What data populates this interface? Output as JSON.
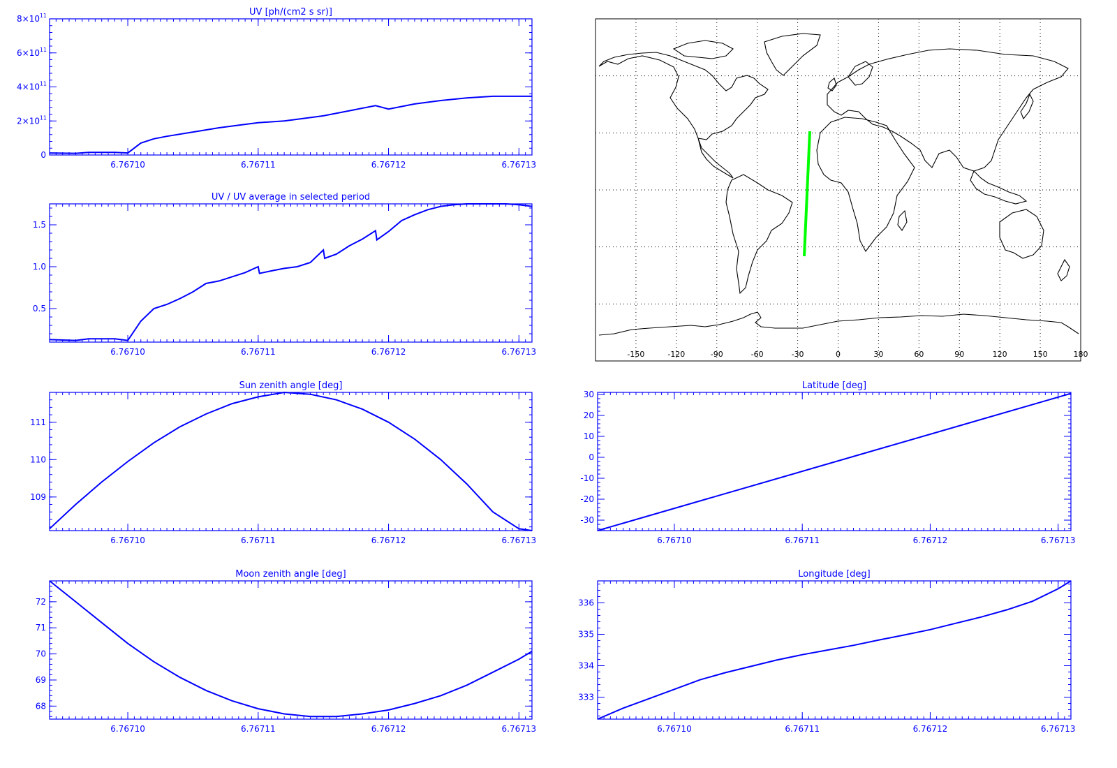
{
  "colors": {
    "plot": "#0000ff",
    "map": "#000000",
    "track": "#00ff00",
    "background": "#ffffff"
  },
  "x_tick_labels": [
    "6.76710",
    "6.76711",
    "6.76712",
    "6.76713"
  ],
  "map": {
    "x_tick_labels": [
      "-150",
      "-120",
      "-90",
      "-60",
      "-30",
      "0",
      "30",
      "60",
      "90",
      "120",
      "150",
      "180"
    ]
  },
  "chart_data": [
    {
      "type": "line",
      "title": "UV [ph/(cm2 s sr)]",
      "xlim": [
        6.767094,
        6.767131
      ],
      "xticks": [
        6.7671,
        6.76711,
        6.76712,
        6.76713
      ],
      "ylim": [
        0,
        800000000000.0
      ],
      "yticks": [
        0,
        200000000000.0,
        400000000000.0,
        600000000000.0,
        800000000000.0
      ],
      "ytick_labels": [
        {
          "base": "0",
          "exp": ""
        },
        {
          "base": "2×10",
          "exp": "11"
        },
        {
          "base": "4×10",
          "exp": "11"
        },
        {
          "base": "6×10",
          "exp": "11"
        },
        {
          "base": "8×10",
          "exp": "11"
        }
      ],
      "x": [
        6.767094,
        6.767096,
        6.767097,
        6.767099,
        6.7671,
        6.767101,
        6.767102,
        6.767103,
        6.767105,
        6.767107,
        6.767109,
        6.76711,
        6.767112,
        6.767114,
        6.767115,
        6.767117,
        6.767119,
        6.76712,
        6.767122,
        6.767124,
        6.767126,
        6.767128,
        6.76713,
        6.767131
      ],
      "y": [
        12000000000.0,
        10000000000.0,
        15000000000.0,
        15000000000.0,
        12000000000.0,
        70000000000.0,
        95000000000.0,
        110000000000.0,
        135000000000.0,
        160000000000.0,
        180000000000.0,
        190000000000.0,
        200000000000.0,
        220000000000.0,
        230000000000.0,
        260000000000.0,
        290000000000.0,
        270000000000.0,
        300000000000.0,
        320000000000.0,
        335000000000.0,
        345000000000.0,
        345000000000.0,
        345000000000.0
      ]
    },
    {
      "type": "line",
      "title": "UV / UV average in selected period",
      "xlim": [
        6.767094,
        6.767131
      ],
      "xticks": [
        6.7671,
        6.76711,
        6.76712,
        6.76713
      ],
      "ylim": [
        0.1,
        1.75
      ],
      "yticks": [
        0.5,
        1.0,
        1.5
      ],
      "ytick_labels": [
        "0.5",
        "1.0",
        "1.5"
      ],
      "x": [
        6.767094,
        6.767096,
        6.767097,
        6.767099,
        6.7671,
        6.767101,
        6.767102,
        6.767103,
        6.767104,
        6.767105,
        6.767106,
        6.767107,
        6.767108,
        6.767109,
        6.76711,
        6.7671101,
        6.767111,
        6.767112,
        6.767113,
        6.767114,
        6.767115,
        6.7671151,
        6.767116,
        6.767117,
        6.767118,
        6.767119,
        6.7671191,
        6.76712,
        6.767121,
        6.767122,
        6.767123,
        6.767124,
        6.767125,
        6.767126,
        6.767127,
        6.767128,
        6.767129,
        6.76713,
        6.767131
      ],
      "y": [
        0.13,
        0.12,
        0.14,
        0.14,
        0.12,
        0.35,
        0.5,
        0.55,
        0.62,
        0.7,
        0.8,
        0.83,
        0.88,
        0.93,
        1.0,
        0.92,
        0.95,
        0.98,
        1.0,
        1.05,
        1.2,
        1.1,
        1.15,
        1.25,
        1.33,
        1.43,
        1.32,
        1.42,
        1.55,
        1.62,
        1.68,
        1.72,
        1.74,
        1.75,
        1.75,
        1.75,
        1.75,
        1.74,
        1.72
      ]
    },
    {
      "type": "line",
      "title": "Sun zenith angle [deg]",
      "xlim": [
        6.767094,
        6.767131
      ],
      "xticks": [
        6.7671,
        6.76711,
        6.76712,
        6.76713
      ],
      "ylim": [
        108.1,
        111.8
      ],
      "yticks": [
        109,
        110,
        111
      ],
      "ytick_labels": [
        "109",
        "110",
        "111"
      ],
      "x": [
        6.767094,
        6.767096,
        6.767098,
        6.7671,
        6.767102,
        6.767104,
        6.767106,
        6.767108,
        6.76711,
        6.767112,
        6.767114,
        6.767116,
        6.767118,
        6.76712,
        6.767122,
        6.767124,
        6.767126,
        6.767128,
        6.76713,
        6.767131
      ],
      "y": [
        108.15,
        108.8,
        109.4,
        109.95,
        110.45,
        110.88,
        111.22,
        111.5,
        111.68,
        111.8,
        111.75,
        111.6,
        111.35,
        111.0,
        110.55,
        110.0,
        109.35,
        108.6,
        108.15,
        108.1
      ]
    },
    {
      "type": "line",
      "title": "Latitude [deg]",
      "xlim": [
        6.767094,
        6.767131
      ],
      "xticks": [
        6.7671,
        6.76711,
        6.76712,
        6.76713
      ],
      "ylim": [
        -35,
        31
      ],
      "yticks": [
        -30,
        -20,
        -10,
        0,
        10,
        20,
        30
      ],
      "ytick_labels": [
        "-30",
        "-20",
        "-10",
        "0",
        "10",
        "20",
        "30"
      ],
      "x": [
        6.767094,
        6.767131
      ],
      "y": [
        -35,
        30.5
      ]
    },
    {
      "type": "line",
      "title": "Moon zenith angle [deg]",
      "xlim": [
        6.767094,
        6.767131
      ],
      "xticks": [
        6.7671,
        6.76711,
        6.76712,
        6.76713
      ],
      "ylim": [
        67.5,
        72.8
      ],
      "yticks": [
        68,
        69,
        70,
        71,
        72
      ],
      "ytick_labels": [
        "68",
        "69",
        "70",
        "71",
        "72"
      ],
      "x": [
        6.767094,
        6.767096,
        6.767098,
        6.7671,
        6.767102,
        6.767104,
        6.767106,
        6.767108,
        6.76711,
        6.767112,
        6.767114,
        6.767116,
        6.767118,
        6.76712,
        6.767122,
        6.767124,
        6.767126,
        6.767128,
        6.76713,
        6.767131
      ],
      "y": [
        72.8,
        72.0,
        71.2,
        70.4,
        69.7,
        69.1,
        68.6,
        68.2,
        67.9,
        67.7,
        67.6,
        67.6,
        67.7,
        67.85,
        68.1,
        68.4,
        68.8,
        69.3,
        69.8,
        70.1
      ]
    },
    {
      "type": "line",
      "title": "Longitude [deg]",
      "xlim": [
        6.767094,
        6.767131
      ],
      "xticks": [
        6.7671,
        6.76711,
        6.76712,
        6.76713
      ],
      "ylim": [
        332.3,
        336.7
      ],
      "yticks": [
        333,
        334,
        335,
        336
      ],
      "ytick_labels": [
        "333",
        "334",
        "335",
        "336"
      ],
      "x": [
        6.767094,
        6.767096,
        6.767098,
        6.7671,
        6.767102,
        6.767104,
        6.767106,
        6.767108,
        6.76711,
        6.767112,
        6.767114,
        6.767116,
        6.767118,
        6.76712,
        6.767122,
        6.767124,
        6.767126,
        6.767128,
        6.76713,
        6.767131
      ],
      "y": [
        332.3,
        332.65,
        332.95,
        333.25,
        333.55,
        333.78,
        333.98,
        334.18,
        334.35,
        334.5,
        334.65,
        334.82,
        334.98,
        335.15,
        335.35,
        335.55,
        335.78,
        336.05,
        336.45,
        336.7
      ]
    }
  ]
}
